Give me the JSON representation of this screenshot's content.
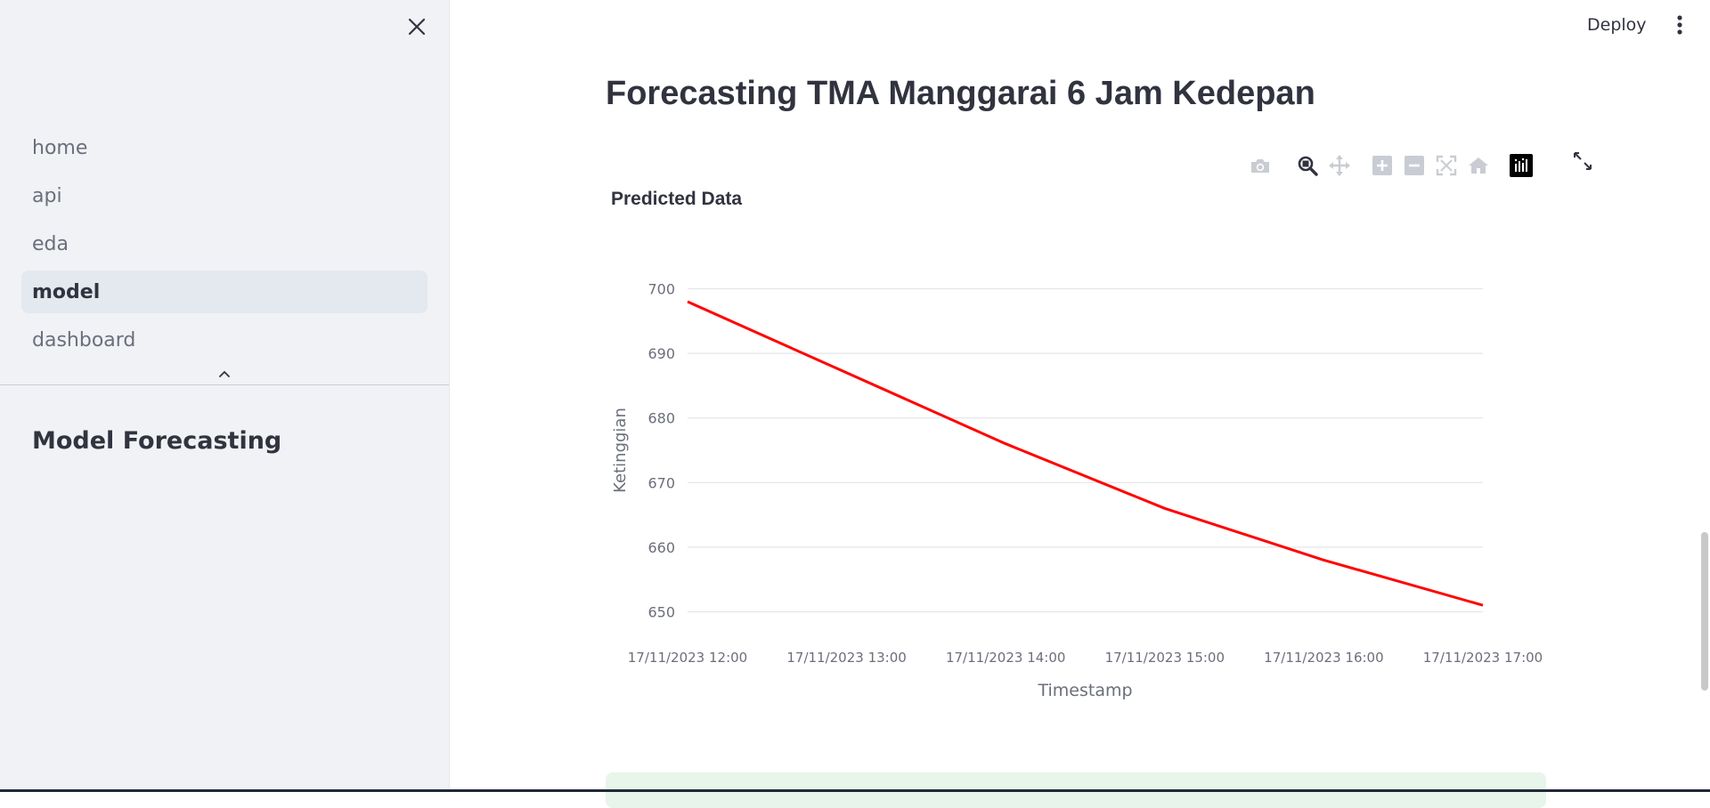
{
  "sidebar": {
    "items": [
      {
        "label": "home",
        "active": false
      },
      {
        "label": "api",
        "active": false
      },
      {
        "label": "eda",
        "active": false
      },
      {
        "label": "model",
        "active": true
      },
      {
        "label": "dashboard",
        "active": false
      }
    ],
    "section_title": "Model Forecasting"
  },
  "header": {
    "deploy_label": "Deploy"
  },
  "main": {
    "title": "Forecasting TMA Manggarai 6 Jam Kedepan"
  },
  "chart_data": {
    "type": "line",
    "title": "Predicted Data",
    "xlabel": "Timestamp",
    "ylabel": "Ketinggian",
    "x": [
      "17/11/2023 12:00",
      "17/11/2023 13:00",
      "17/11/2023 14:00",
      "17/11/2023 15:00",
      "17/11/2023 16:00",
      "17/11/2023 17:00"
    ],
    "series": [
      {
        "values": [
          698,
          687,
          676,
          666,
          658,
          651
        ],
        "color": "#ff0000"
      }
    ],
    "y_ticks": [
      650,
      660,
      670,
      680,
      690,
      700
    ],
    "ylim": [
      648,
      702
    ],
    "grid": true
  },
  "modebar_icons": [
    "camera-icon",
    "zoom-icon",
    "pan-icon",
    "zoom-in-icon",
    "zoom-out-icon",
    "autoscale-icon",
    "reset-axes-icon",
    "plotly-logo-icon"
  ]
}
